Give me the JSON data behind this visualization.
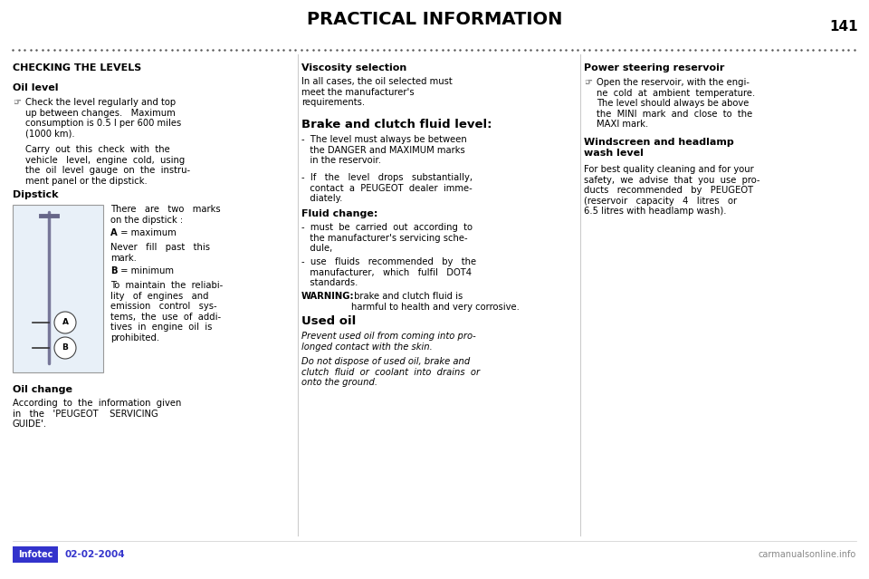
{
  "page_bg": "#ffffff",
  "title": "PRACTICAL INFORMATION",
  "page_number": "141",
  "col1": {
    "heading1": "CHECKING THE LEVELS",
    "heading2": "Oil level",
    "para1": "Check the level regularly and top\nup between changes.   Maximum\nconsumption is 0.5 l per 600 miles\n(1000 km).",
    "para2": "Carry  out  this  check  with  the\nvehicle   level,  engine  cold,  using\nthe  oil  level  gauge  on  the  instru-\nment panel or the dipstick.",
    "heading3": "Dipstick",
    "dipstick_text1": "There   are   two   marks\non the dipstick :",
    "dipstick_A": "A",
    "dipstick_A2": " = maximum",
    "dipstick_text3": "Never   fill   past   this\nmark.",
    "dipstick_B": "B",
    "dipstick_B2": " = minimum",
    "dipstick_text5": "To  maintain  the  reliabi-\nlity   of  engines   and\nemission   control   sys-\ntems,  the  use  of  addi-\ntives  in  engine  oil  is\nprohibited.",
    "heading4": "Oil change",
    "para3": "According  to  the  information  given\nin   the   'PEUGEOT    SERVICING\nGUIDE'."
  },
  "col2": {
    "heading1": "Viscosity selection",
    "para1": "In all cases, the oil selected must\nmeet the manufacturer's\nrequirements.",
    "heading2": "Brake and clutch fluid level:",
    "bullet1": "-  The level must always be between\n   the DANGER and MAXIMUM marks\n   in the reservoir.",
    "bullet2": "-  If   the   level   drops   substantially,\n   contact  a  PEUGEOT  dealer  imme-\n   diately.",
    "heading3": "Fluid change:",
    "bullet3": "-  must  be  carried  out  according  to\n   the manufacturer's servicing sche-\n   dule,",
    "bullet4": "-  use   fluids   recommended   by   the\n   manufacturer,   which   fulfil   DOT4\n   standards.",
    "warning_bold": "WARNING:",
    "warning_normal": " brake and clutch fluid is\nharmful to health and very corrosive.",
    "heading4": "Used oil",
    "italic1": "Prevent used oil from coming into pro-\nlonged contact with the skin.",
    "italic2": "Do not dispose of used oil, brake and\nclutch  fluid  or  coolant  into  drains  or\nonto the ground."
  },
  "col3": {
    "heading1": "Power steering reservoir",
    "para1": "Open the reservoir, with the engi-\nne  cold  at  ambient  temperature.\nThe level should always be above\nthe  MINI  mark  and  close  to  the\nMAXI mark.",
    "heading2": "Windscreen and headlamp\nwash level",
    "para2": "For best quality cleaning and for your\nsafety,  we  advise  that  you  use  pro-\nducts   recommended   by   PEUGEOT\n(reservoir   capacity   4   litres   or\n6.5 litres with headlamp wash)."
  },
  "footer_date": "02-02-2004",
  "footer_logo_text": "Infotec",
  "footer_logo_bg": "#3333cc",
  "footer_logo_text_color": "#ffffff",
  "footer_date_color": "#3333cc",
  "watermark": "carmanualsonline.info",
  "watermark_color": "#888888"
}
